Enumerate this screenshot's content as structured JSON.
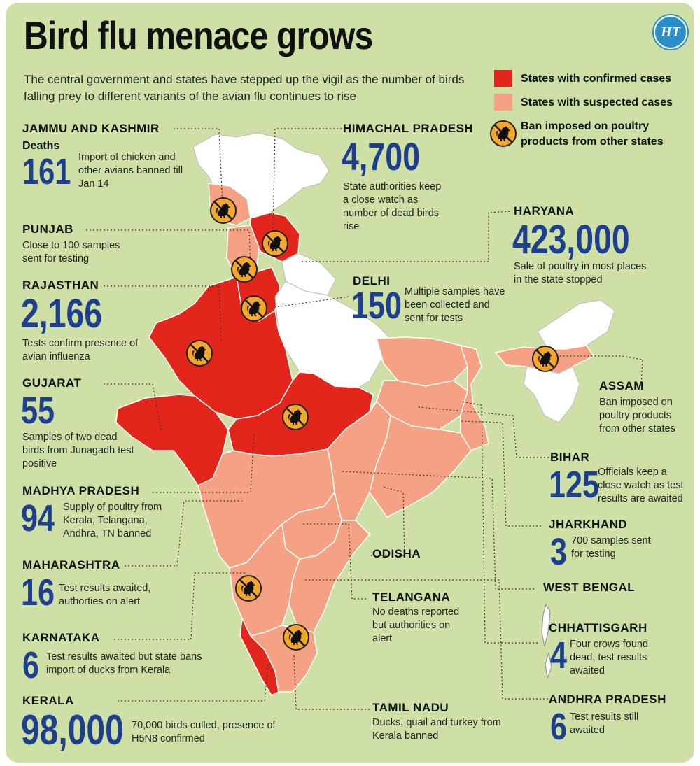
{
  "header": {
    "title": "Bird flu menace grows",
    "subtitle": "The central government and states have stepped up the vigil as the number of birds falling prey to different variants of the avian flu continues to rise",
    "logo": "HT"
  },
  "legend": [
    {
      "label": "States with confirmed cases",
      "color": "#e2261c"
    },
    {
      "label": "States with suspected cases",
      "color": "#f4a184"
    },
    {
      "label": "Ban imposed on poultry products from other states",
      "icon": "rooster-ban-icon"
    }
  ],
  "colors": {
    "background": "#cfe0a6",
    "confirmed": "#e2261c",
    "suspected": "#f4a184",
    "unaffected": "#ffffff",
    "number": "#1e3f8e",
    "ban_badge": "#f3a72b"
  },
  "states": {
    "jk": {
      "name": "JAMMU AND KASHMIR",
      "label": "Deaths",
      "number": "161",
      "desc": "Import of chicken and other avians banned till Jan 14"
    },
    "hp": {
      "name": "HIMACHAL PRADESH",
      "number": "4,700",
      "desc": "State authorities keep a close watch as number of dead birds rise"
    },
    "punjab": {
      "name": "PUNJAB",
      "desc": "Close to 100 samples sent for testing"
    },
    "haryana": {
      "name": "HARYANA",
      "number": "423,000",
      "desc": "Sale of poultry in most places in the state stopped"
    },
    "rajasthan": {
      "name": "RAJASTHAN",
      "number": "2,166",
      "desc": "Tests  confirm presence of avian influenza"
    },
    "delhi": {
      "name": "DELHI",
      "number": "150",
      "desc": "Multiple samples have been collected and sent for tests"
    },
    "gujarat": {
      "name": "GUJARAT",
      "number": "55",
      "desc": "Samples of two dead birds from Junagadh test positive"
    },
    "assam": {
      "name": "ASSAM",
      "desc": "Ban imposed on poultry products from other states"
    },
    "mp": {
      "name": "MADHYA PRADESH",
      "number": "94",
      "desc": "Supply of poultry from Kerala, Telangana, Andhra, TN banned"
    },
    "bihar": {
      "name": "BIHAR",
      "number": "125",
      "desc": "Officials keep a close watch as test results are awaited"
    },
    "maharashtra": {
      "name": "MAHARASHTRA",
      "number": "16",
      "desc": "Test results awaited, authorties on alert"
    },
    "jharkhand": {
      "name": "JHARKHAND",
      "number": "3",
      "desc": "700 samples sent for testing"
    },
    "odisha": {
      "name": "ODISHA"
    },
    "westbengal": {
      "name": "WEST BENGAL"
    },
    "telangana": {
      "name": "TELANGANA",
      "desc": "No deaths reported but authorities on alert"
    },
    "karnataka": {
      "name": "KARNATAKA",
      "number": "6",
      "desc": "Test results awaited but state bans import of ducks from Kerala"
    },
    "chhattisgarh": {
      "name": "CHHATTISGARH",
      "number": "4",
      "desc": "Four crows found dead,  test results awaited"
    },
    "kerala": {
      "name": "KERALA",
      "number": "98,000",
      "desc": "70,000 birds culled, presence of H5N8 confirmed"
    },
    "tn": {
      "name": "TAMIL NADU",
      "desc": "Ducks, quail and turkey from Kerala banned"
    },
    "ap": {
      "name": "ANDHRA PRADESH",
      "number": "6",
      "desc": "Test results still awaited"
    }
  }
}
